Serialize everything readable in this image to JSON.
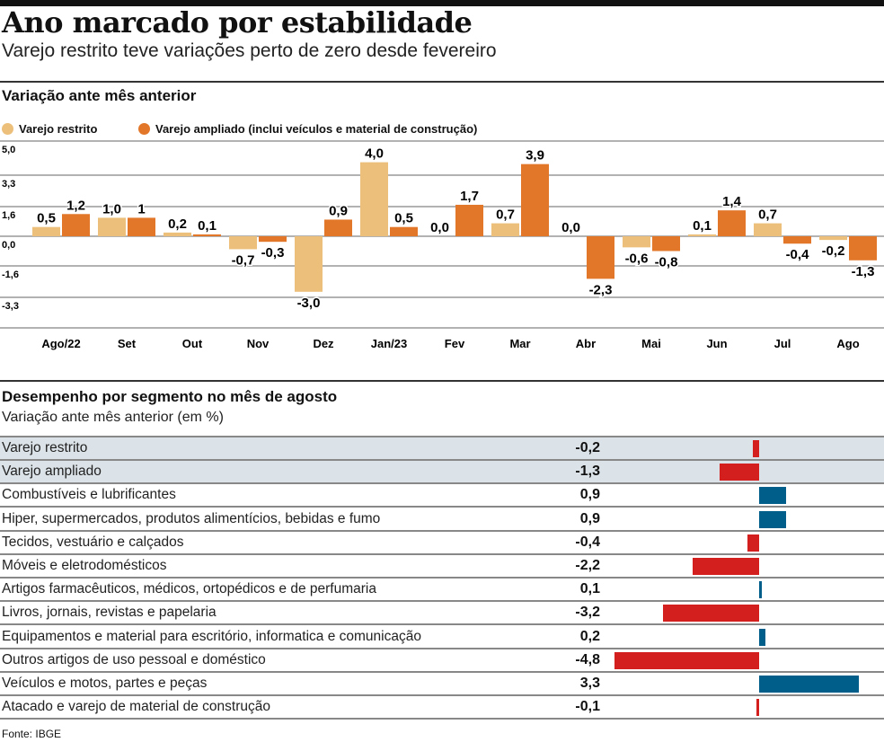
{
  "title": "Ano marcado por estabilidade",
  "subtitle": "Varejo restrito teve variações perto de zero desde fevereiro",
  "source": "Fonte: IBGE",
  "colors": {
    "restrito": "#ecc07a",
    "ampliado": "#e2772a",
    "negative": "#d41f1f",
    "positive": "#005f8a",
    "highlight_row": "#dce3e8"
  },
  "chart_data": [
    {
      "type": "bar",
      "title": "Variação ante mês anterior",
      "categories": [
        "Ago/22",
        "Set",
        "Out",
        "Nov",
        "Dez",
        "Jan/23",
        "Fev",
        "Mar",
        "Abr",
        "Mai",
        "Jun",
        "Jul",
        "Ago"
      ],
      "yticks": [
        "5,0",
        "3,3",
        "1,6",
        "0,0",
        "-1,6",
        "-3,3"
      ],
      "ylim": [
        -4.9,
        5.0
      ],
      "grid": true,
      "legend": "top-left",
      "series": [
        {
          "name": "Varejo restrito",
          "values": [
            0.5,
            1.0,
            0.2,
            -0.7,
            -3.0,
            4.0,
            0.0,
            0.7,
            0.0,
            -0.6,
            0.1,
            0.7,
            -0.2
          ],
          "labels": [
            "0,5",
            "1,0",
            "0,2",
            "-0,7",
            "-3,0",
            "4,0",
            "0,0",
            "0,7",
            "0,0",
            "-0,6",
            "0,1",
            "0,7",
            "-0,2"
          ]
        },
        {
          "name": "Varejo ampliado (inclui veículos e material de construção)",
          "values": [
            1.2,
            1.0,
            0.1,
            -0.3,
            0.9,
            0.5,
            1.7,
            3.9,
            -2.3,
            -0.8,
            1.4,
            -0.4,
            -1.3
          ],
          "labels": [
            "1,2",
            "1",
            "0,1",
            "-0,3",
            "0,9",
            "0,5",
            "1,7",
            "3,9",
            "-2,3",
            "-0,8",
            "1,4",
            "-0,4",
            "-1,3"
          ]
        }
      ]
    },
    {
      "type": "bar",
      "orientation": "horizontal",
      "title": "Desempenho por segmento no mês de agosto",
      "subtitle": "Variação ante mês anterior (em %)",
      "rows": [
        {
          "label": "Varejo restrito",
          "value": -0.2,
          "text": "-0,2",
          "highlight": true
        },
        {
          "label": "Varejo ampliado",
          "value": -1.3,
          "text": "-1,3",
          "highlight": true
        },
        {
          "label": "Combustíveis e lubrificantes",
          "value": 0.9,
          "text": "0,9"
        },
        {
          "label": "Hiper, supermercados, produtos alimentícios, bebidas e fumo",
          "value": 0.9,
          "text": "0,9"
        },
        {
          "label": "Tecidos, vestuário e calçados",
          "value": -0.4,
          "text": "-0,4"
        },
        {
          "label": "Móveis e eletrodomésticos",
          "value": -2.2,
          "text": "-2,2"
        },
        {
          "label": "Artigos farmacêuticos, médicos, ortopédicos e de perfumaria",
          "value": 0.1,
          "text": "0,1"
        },
        {
          "label": "Livros, jornais, revistas e papelaria",
          "value": -3.2,
          "text": "-3,2"
        },
        {
          "label": "Equipamentos e material para escritório, informatica e comunicação",
          "value": 0.2,
          "text": "0,2"
        },
        {
          "label": "Outros artigos de uso pessoal e doméstico",
          "value": -4.8,
          "text": "-4,8"
        },
        {
          "label": "Veículos e motos, partes e peças",
          "value": 3.3,
          "text": "3,3"
        },
        {
          "label": "Atacado e varejo de material de construção",
          "value": -0.1,
          "text": "-0,1"
        }
      ]
    }
  ]
}
